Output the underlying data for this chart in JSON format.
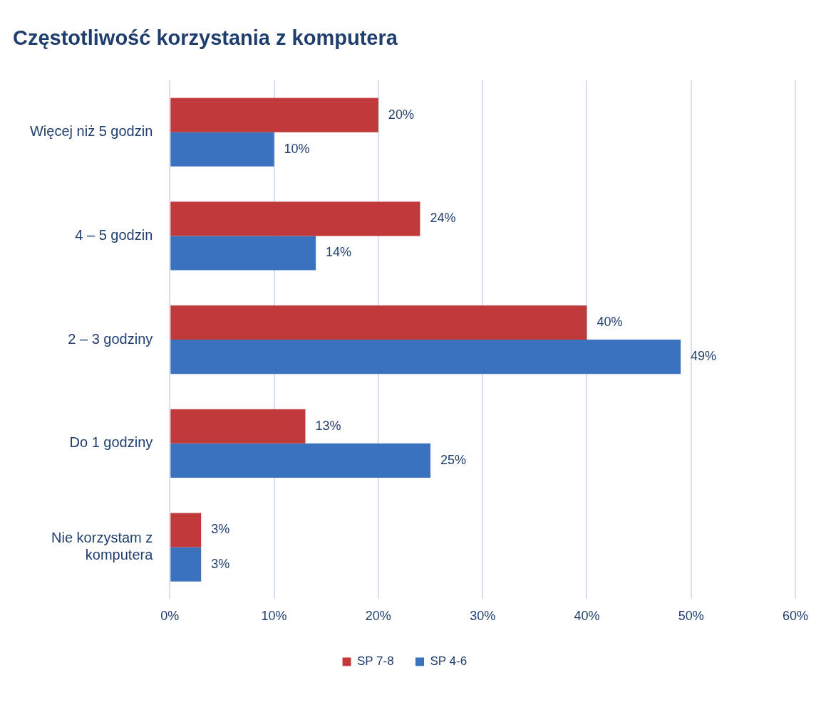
{
  "chart_data": {
    "type": "bar",
    "orientation": "horizontal",
    "title": "Częstotliwość korzystania z komputera",
    "categories": [
      "Więcej niż 5 godzin",
      "4 – 5 godzin",
      "2 – 3 godziny",
      "Do 1 godziny",
      "Nie korzystam z komputera"
    ],
    "series": [
      {
        "name": "SP 7-8",
        "color": "#c0393b",
        "values": [
          20,
          24,
          40,
          13,
          3
        ],
        "value_labels": [
          "20%",
          "24%",
          "40%",
          "13%",
          "3%"
        ]
      },
      {
        "name": "SP 4-6",
        "color": "#3a72bd",
        "values": [
          10,
          14,
          49,
          25,
          3
        ],
        "value_labels": [
          "10%",
          "14%",
          "49%",
          "25%",
          "3%"
        ]
      }
    ],
    "xlim": [
      0,
      60
    ],
    "xticks": [
      {
        "value": 0,
        "label": "0%"
      },
      {
        "value": 10,
        "label": "10%"
      },
      {
        "value": 20,
        "label": "20%"
      },
      {
        "value": 30,
        "label": "30%"
      },
      {
        "value": 40,
        "label": "40%"
      },
      {
        "value": 50,
        "label": "50%"
      },
      {
        "value": 60,
        "label": "60%"
      }
    ],
    "grid": "x",
    "legend": "bottom"
  }
}
